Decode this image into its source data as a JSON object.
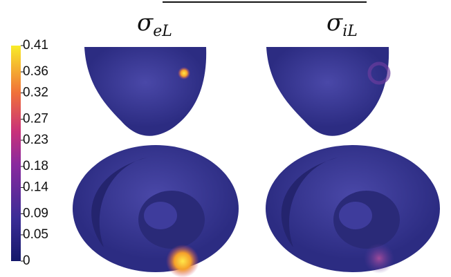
{
  "panels": [
    {
      "symbol": "σ",
      "subscript": "eL"
    },
    {
      "symbol": "σ",
      "subscript": "iL"
    }
  ],
  "colorbar": {
    "lim": [
      0,
      0.41
    ],
    "ticks": [
      0,
      0.05,
      0.09,
      0.14,
      0.18,
      0.23,
      0.27,
      0.32,
      0.36,
      0.41
    ]
  }
}
